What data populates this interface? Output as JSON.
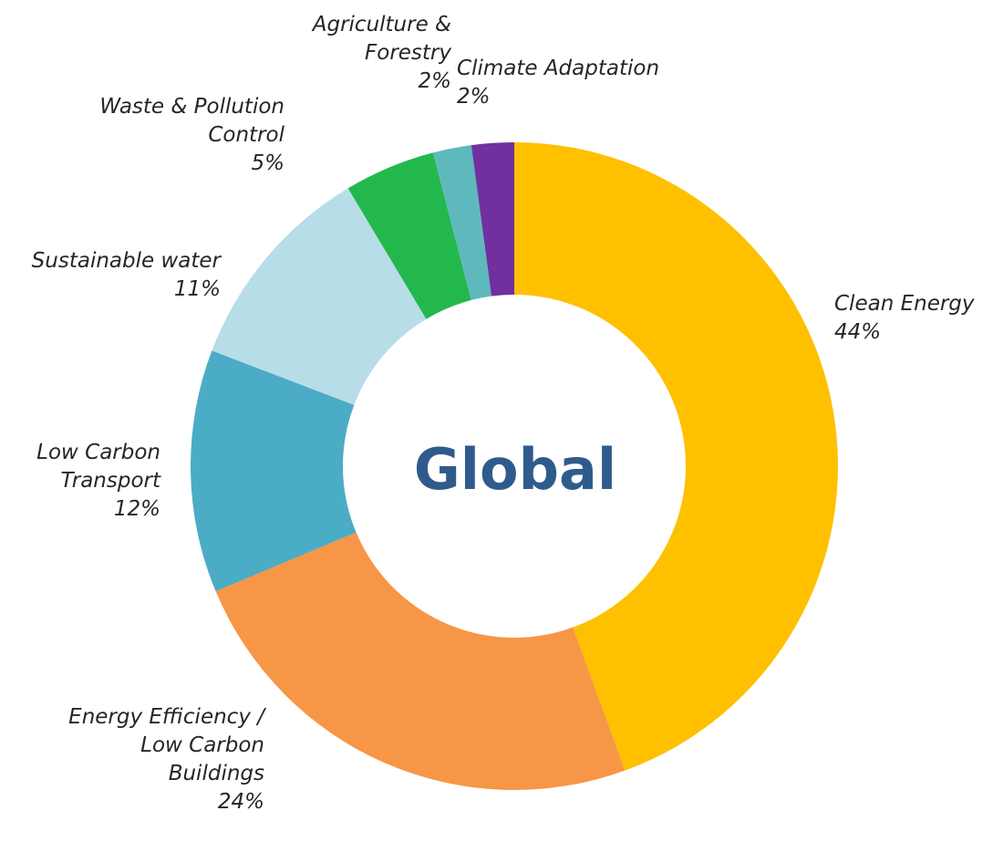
{
  "chart_data": {
    "type": "pie",
    "center_label": "Global",
    "slices": [
      {
        "label": [
          "Clean Energy"
        ],
        "pct_label": "44%",
        "value": 44.0,
        "color": "#ffc000"
      },
      {
        "label": [
          "Energy Efficiency /",
          "Low Carbon",
          "Buildings"
        ],
        "pct_label": "24%",
        "value": 24.0,
        "color": "#f79646"
      },
      {
        "label": [
          "Low Carbon",
          "Transport"
        ],
        "pct_label": "12%",
        "value": 12.0,
        "color": "#4bacc6"
      },
      {
        "label": [
          "Sustainable water"
        ],
        "pct_label": "11%",
        "value": 10.5,
        "color": "#b7dde8"
      },
      {
        "label": [
          "Waste & Pollution",
          "Control"
        ],
        "pct_label": "5%",
        "value": 4.5,
        "color": "#23b84c"
      },
      {
        "label": [
          "Agriculture &",
          "Forestry"
        ],
        "pct_label": "2%",
        "value": 1.9,
        "color": "#5eb9bd"
      },
      {
        "label": [
          "Climate Adaptation"
        ],
        "pct_label": "2%",
        "value": 2.1,
        "color": "#7030a0"
      }
    ]
  }
}
